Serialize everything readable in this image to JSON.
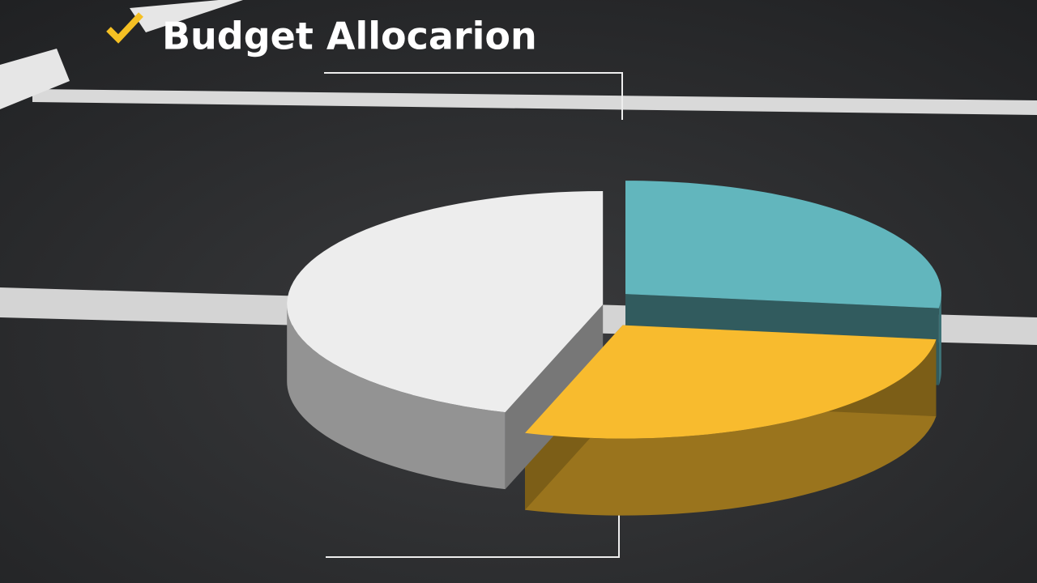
{
  "chart_data": {
    "type": "pie",
    "title": "Budget Allocarion",
    "values": [
      27,
      28,
      45
    ],
    "colors": [
      "#62b6bd",
      "#f8bb2e",
      "#ededed"
    ]
  }
}
